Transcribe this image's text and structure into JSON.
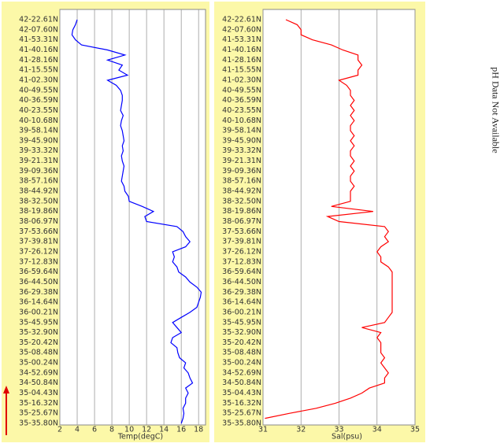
{
  "chart_data": [
    {
      "type": "line",
      "x_label": "Temp(degC)",
      "color": "#0000ff",
      "categories": [
        "42-22.61N",
        null,
        "42-07.60N",
        null,
        "41-53.31N",
        null,
        "41-40.16N",
        null,
        "41-28.16N",
        null,
        "41-15.55N",
        null,
        "41-02.30N",
        null,
        "40-49.55N",
        null,
        "40-36.59N",
        null,
        "40-23.55N",
        null,
        "40-10.68N",
        null,
        "39-58.14N",
        null,
        "39-45.90N",
        null,
        "39-33.32N",
        null,
        "39-21.31N",
        null,
        "39-09.36N",
        null,
        "38-57.16N",
        null,
        "38-44.92N",
        null,
        "38-32.50N",
        null,
        "38-19.86N",
        null,
        "38-06.97N",
        null,
        "37-53.66N",
        null,
        "37-39.81N",
        null,
        "37-26.12N",
        null,
        "37-12.83N",
        null,
        "36-59.64N",
        null,
        "36-44.50N",
        null,
        "36-29.38N",
        null,
        "36-14.64N",
        null,
        "36-00.21N",
        null,
        "35-45.95N",
        null,
        "35-32.90N",
        null,
        "35-20.42N",
        null,
        "35-08.48N",
        null,
        "35-00.24N",
        null,
        "34-52.69N",
        null,
        "34-50.84N",
        null,
        "35-04.43N",
        null,
        "35-16.32N",
        null,
        "35-25.67N",
        null,
        "35-35.80N"
      ],
      "values": [
        4.0,
        3.8,
        3.5,
        3.4,
        3.8,
        4.5,
        7.5,
        9.5,
        7.5,
        9.2,
        8.8,
        9.8,
        7.5,
        8.5,
        9.0,
        9.2,
        9.2,
        9.1,
        9.0,
        9.3,
        9.1,
        9.0,
        9.2,
        9.3,
        9.4,
        9.2,
        9.3,
        9.1,
        9.2,
        9.4,
        9.3,
        9.2,
        9.1,
        9.4,
        9.5,
        9.9,
        10.0,
        11.5,
        12.8,
        11.8,
        12.0,
        15.5,
        16.2,
        16.5,
        17.0,
        16.5,
        15.0,
        15.2,
        15.0,
        15.5,
        15.7,
        16.5,
        17.0,
        17.8,
        18.3,
        18.2,
        18.0,
        17.8,
        17.0,
        16.0,
        15.0,
        15.5,
        16.0,
        15.0,
        14.8,
        15.5,
        15.6,
        15.8,
        16.5,
        16.3,
        16.8,
        17.0,
        17.3,
        16.5,
        16.8,
        16.5,
        16.5,
        16.2,
        16.3,
        16.2,
        16.0
      ],
      "xlim": [
        2,
        18.8
      ],
      "xticks": [
        2,
        4,
        6,
        8,
        10,
        12,
        14,
        16,
        18
      ],
      "grid": true
    },
    {
      "type": "line",
      "x_label": "Sal(psu)",
      "color": "#ff0000",
      "categories": [
        "42-22.61N",
        null,
        "42-07.60N",
        null,
        "41-53.31N",
        null,
        "41-40.16N",
        null,
        "41-28.16N",
        null,
        "41-15.55N",
        null,
        "41-02.30N",
        null,
        "40-49.55N",
        null,
        "40-36.59N",
        null,
        "40-23.55N",
        null,
        "40-10.68N",
        null,
        "39-58.14N",
        null,
        "39-45.90N",
        null,
        "39-33.32N",
        null,
        "39-21.31N",
        null,
        "39-09.36N",
        null,
        "38-57.16N",
        null,
        "38-44.92N",
        null,
        "38-32.50N",
        null,
        "38-19.86N",
        null,
        "38-06.97N",
        null,
        "37-53.66N",
        null,
        "37-39.81N",
        null,
        "37-26.12N",
        null,
        "37-12.83N",
        null,
        "36-59.64N",
        null,
        "36-44.50N",
        null,
        "36-29.38N",
        null,
        "36-14.64N",
        null,
        "36-00.21N",
        null,
        "35-45.95N",
        null,
        "35-32.90N",
        null,
        "35-20.42N",
        null,
        "35-08.48N",
        null,
        "35-00.24N",
        null,
        "34-52.69N",
        null,
        "34-50.84N",
        null,
        "35-04.43N",
        null,
        "35-16.32N",
        null,
        "35-25.67N",
        null,
        "35-35.80N"
      ],
      "values": [
        31.6,
        31.9,
        32.0,
        32.0,
        32.3,
        32.8,
        33.1,
        33.5,
        33.5,
        33.6,
        33.5,
        33.5,
        33.0,
        33.2,
        33.3,
        33.3,
        33.4,
        33.3,
        33.4,
        33.3,
        33.4,
        33.3,
        33.3,
        33.4,
        33.3,
        33.4,
        33.3,
        33.3,
        33.4,
        33.3,
        33.4,
        33.3,
        33.3,
        33.4,
        33.3,
        33.3,
        33.3,
        32.8,
        33.9,
        32.7,
        33.0,
        34.2,
        34.3,
        34.2,
        34.3,
        34.1,
        34.0,
        34.1,
        34.1,
        34.3,
        34.4,
        34.4,
        34.4,
        34.4,
        34.4,
        34.4,
        34.4,
        34.4,
        34.4,
        34.3,
        34.2,
        33.6,
        34.1,
        34.0,
        34.1,
        34.1,
        34.1,
        34.2,
        34.1,
        34.2,
        34.3,
        34.2,
        34.2,
        33.8,
        33.6,
        33.3,
        32.9,
        32.4,
        31.7,
        31.05,
        null
      ],
      "xlim": [
        31,
        35
      ],
      "xticks": [
        31,
        32,
        33,
        34,
        35
      ],
      "grid": true
    }
  ],
  "side_note": "pH Data Not Available"
}
